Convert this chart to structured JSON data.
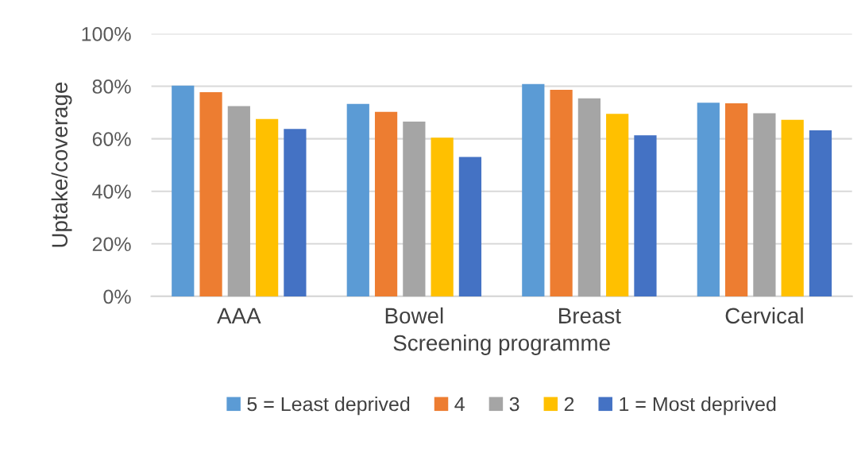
{
  "chart_data": {
    "type": "bar",
    "xlabel": "Screening programme",
    "ylabel": "Uptake/coverage",
    "categories": [
      "AAA",
      "Bowel",
      "Breast",
      "Cervical"
    ],
    "series": [
      {
        "name": "5 = Least deprived",
        "color": "#5b9bd5",
        "values": [
          80.2,
          73.3,
          80.8,
          73.7
        ]
      },
      {
        "name": "4",
        "color": "#ed7d31",
        "values": [
          77.7,
          70.2,
          78.6,
          73.5
        ]
      },
      {
        "name": "3",
        "color": "#a5a5a5",
        "values": [
          72.4,
          66.5,
          75.4,
          69.7
        ]
      },
      {
        "name": "2",
        "color": "#ffc000",
        "values": [
          67.5,
          60.4,
          69.5,
          67.2
        ]
      },
      {
        "name": "1 = Most deprived",
        "color": "#4472c4",
        "values": [
          63.7,
          53.1,
          61.3,
          63.2
        ]
      }
    ],
    "ylim": [
      0,
      100
    ],
    "yticks": [
      {
        "value": 0,
        "label": "0%"
      },
      {
        "value": 20,
        "label": "20%"
      },
      {
        "value": 40,
        "label": "40%"
      },
      {
        "value": 60,
        "label": "60%"
      },
      {
        "value": 80,
        "label": "80%"
      },
      {
        "value": 100,
        "label": "100%"
      }
    ],
    "grid": "y",
    "legend": "bottom"
  }
}
